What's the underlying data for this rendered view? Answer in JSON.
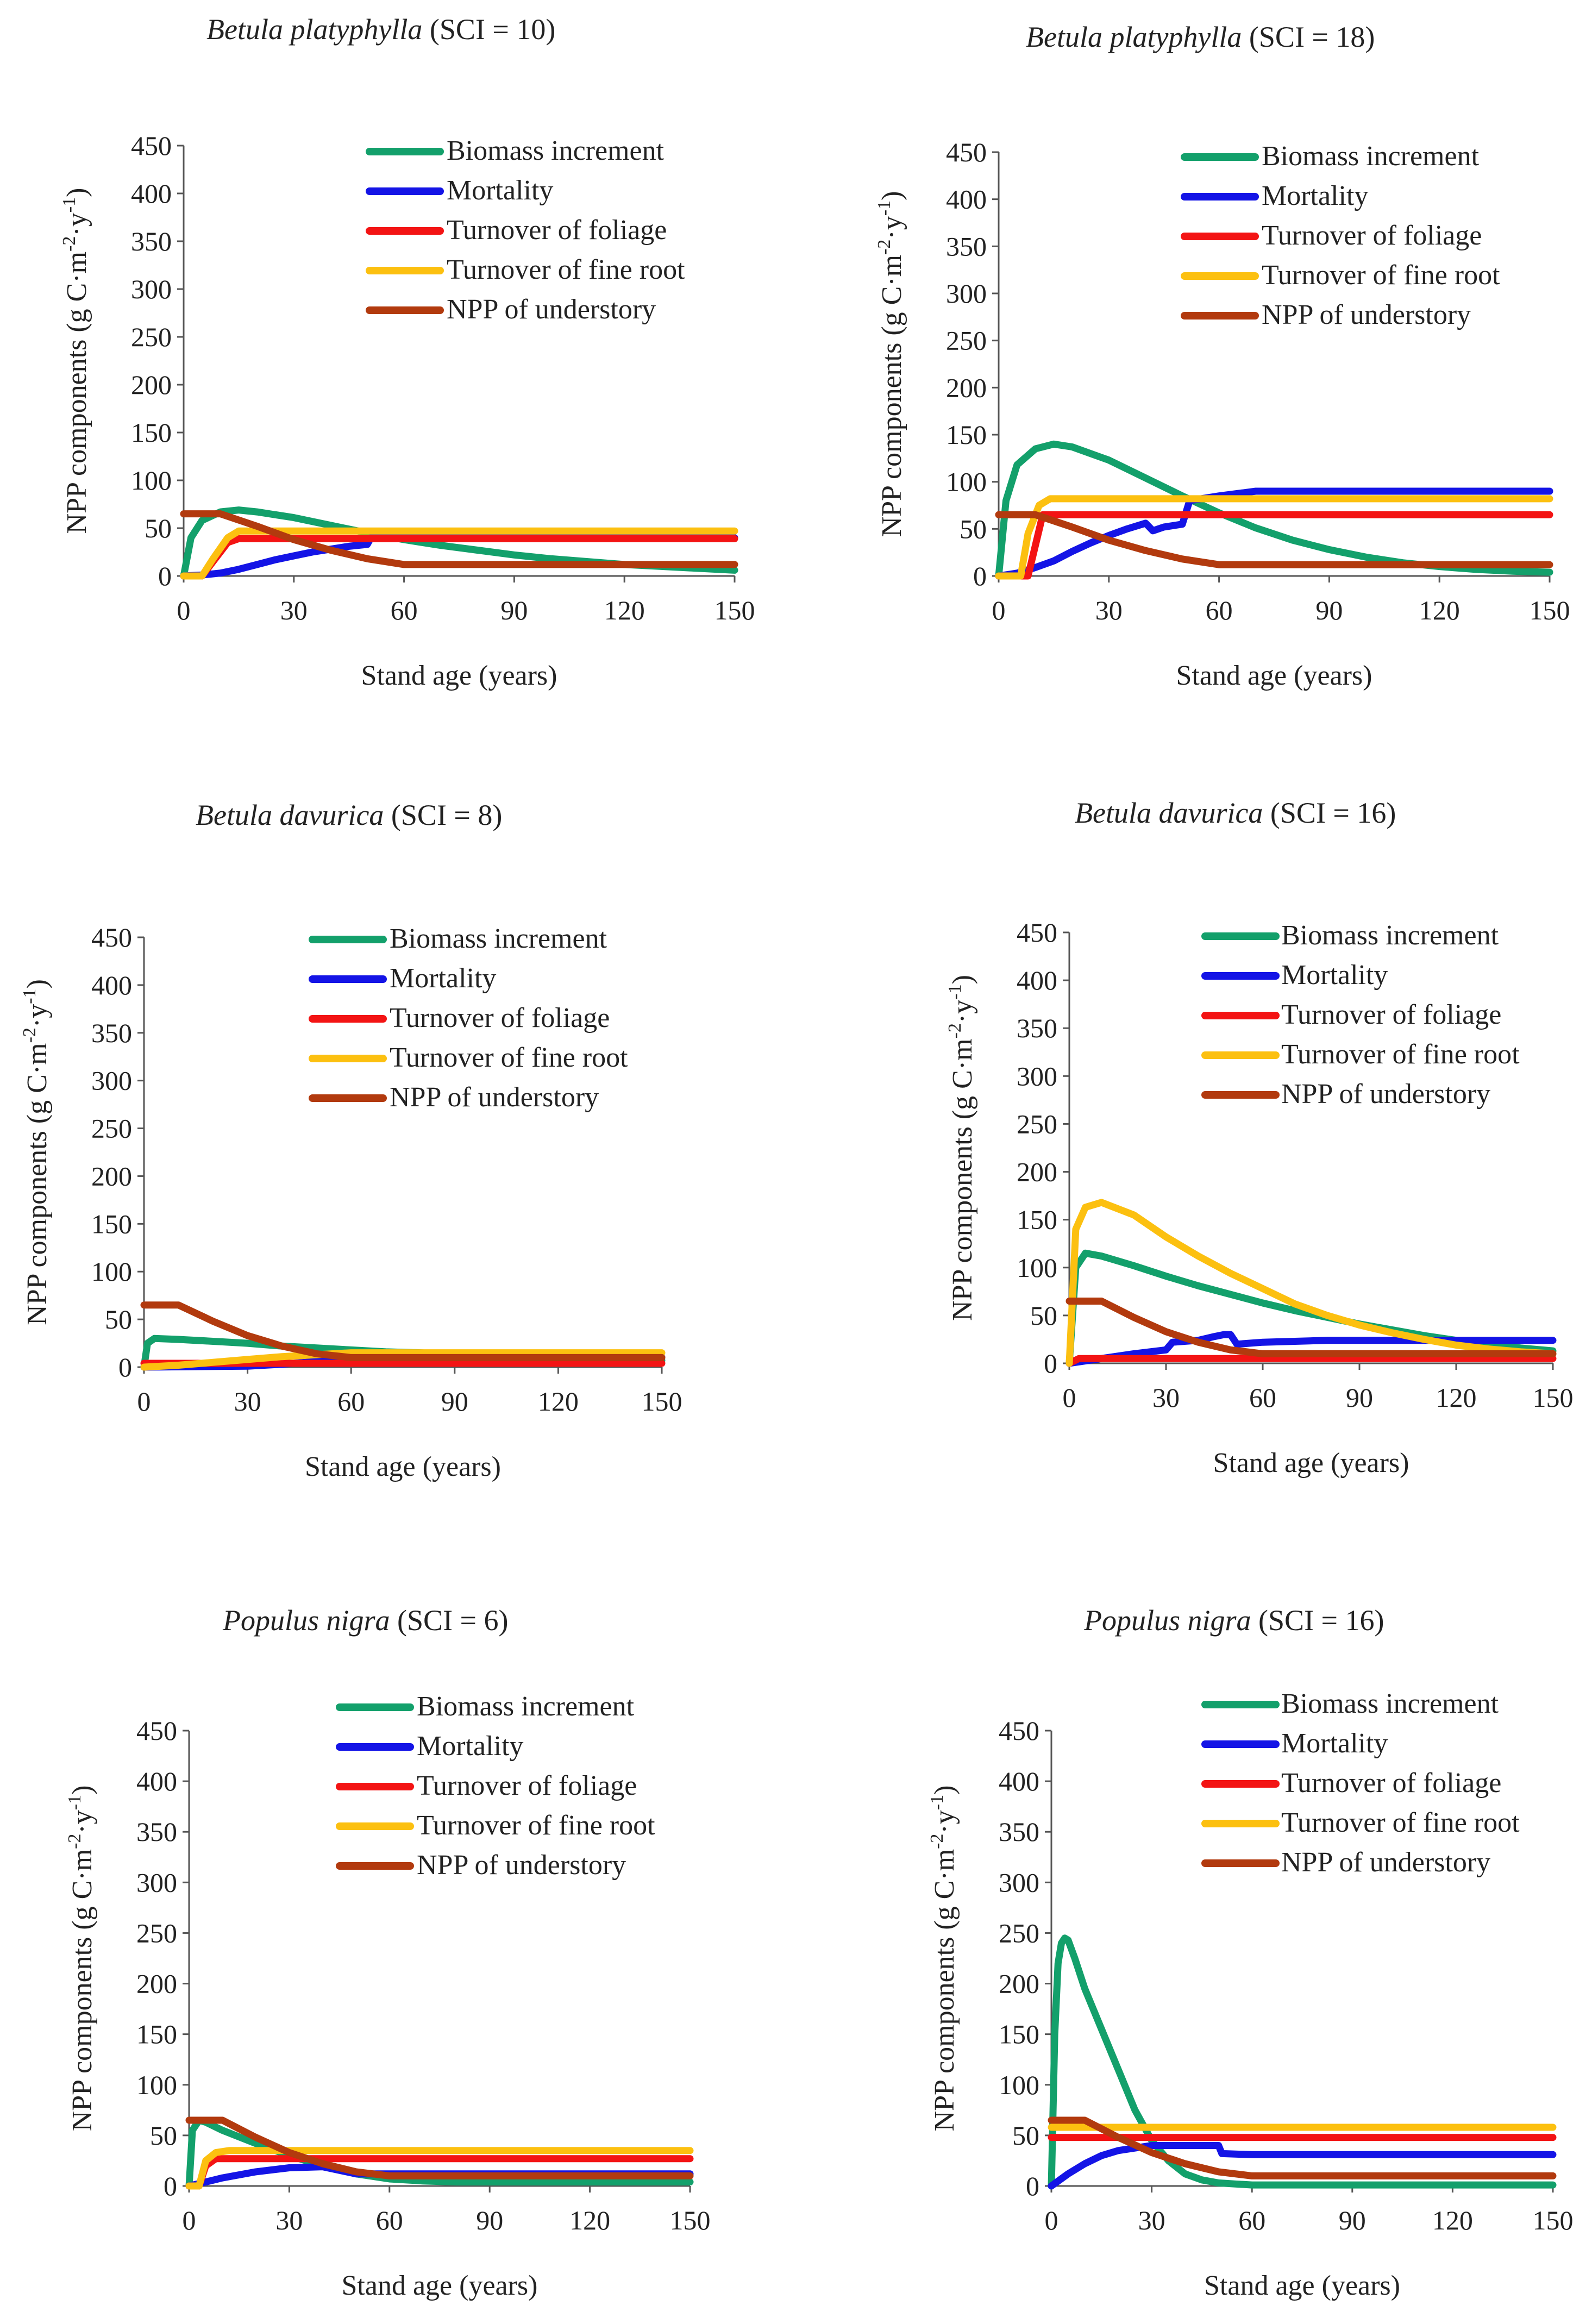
{
  "colors": {
    "Biomass increment": "#13A06B",
    "Mortality": "#1414E6",
    "Turnover of foliage": "#F31414",
    "Turnover of fine root": "#FCC010",
    "NPP of understory": "#B23A0E"
  },
  "legend_labels": [
    "Biomass increment",
    "Mortality",
    "Turnover of foliage",
    "Turnover of fine root",
    "NPP of understory"
  ],
  "chart_data": [
    {
      "type": "line",
      "species": "Betula platyphylla",
      "sci_label": " (SCI = 10)",
      "xlabel": "Stand age  (years)",
      "ylabel": "NPP components  (g C·m-2·y-1)",
      "ylabel_parts": {
        "pre": "NPP components  (g C·m",
        "sup1": "-2",
        "mid": "·y",
        "sup2": "-1",
        "post": ")"
      },
      "xlim": [
        0,
        150
      ],
      "ylim": [
        0,
        450
      ],
      "xticks": [
        0,
        30,
        60,
        90,
        120,
        150
      ],
      "yticks": [
        0,
        50,
        100,
        150,
        200,
        250,
        300,
        350,
        400,
        450
      ],
      "legend_position": "top-right",
      "series": [
        {
          "name": "Biomass increment",
          "x": [
            0,
            2,
            5,
            10,
            15,
            20,
            30,
            40,
            50,
            60,
            70,
            80,
            90,
            100,
            110,
            120,
            130,
            140,
            150
          ],
          "y": [
            0,
            40,
            58,
            67,
            69,
            67,
            61,
            53,
            45,
            38,
            32,
            27,
            22,
            18,
            15,
            12,
            10,
            8,
            6
          ]
        },
        {
          "name": "Mortality",
          "x": [
            0,
            5,
            10,
            15,
            20,
            25,
            30,
            35,
            40,
            45,
            50,
            51,
            150
          ],
          "y": [
            0,
            1,
            3,
            7,
            12,
            17,
            21,
            25,
            28,
            31,
            33,
            40,
            40
          ]
        },
        {
          "name": "Turnover of foliage",
          "x": [
            0,
            5,
            8,
            12,
            15,
            150
          ],
          "y": [
            0,
            0,
            15,
            35,
            39,
            39
          ]
        },
        {
          "name": "Turnover of fine root",
          "x": [
            0,
            5,
            8,
            12,
            15,
            150
          ],
          "y": [
            0,
            0,
            18,
            40,
            47,
            47
          ]
        },
        {
          "name": "NPP of understory",
          "x": [
            0,
            10,
            20,
            30,
            40,
            50,
            60,
            150
          ],
          "y": [
            65,
            65,
            52,
            38,
            27,
            18,
            12,
            12
          ]
        }
      ]
    },
    {
      "type": "line",
      "species": "Betula platyphylla",
      "sci_label": " (SCI = 18)",
      "xlabel": "Stand age  (years)",
      "ylabel": "NPP components  (g C·m-2·y-1)",
      "ylabel_parts": {
        "pre": "NPP components  (g C·m",
        "sup1": "-2",
        "mid": "·y",
        "sup2": "-1",
        "post": ")"
      },
      "xlim": [
        0,
        150
      ],
      "ylim": [
        0,
        450
      ],
      "xticks": [
        0,
        30,
        60,
        90,
        120,
        150
      ],
      "yticks": [
        0,
        50,
        100,
        150,
        200,
        250,
        300,
        350,
        400,
        450
      ],
      "legend_position": "top-right",
      "series": [
        {
          "name": "Biomass increment",
          "x": [
            0,
            2,
            5,
            10,
            15,
            20,
            30,
            40,
            50,
            60,
            70,
            80,
            90,
            100,
            110,
            120,
            130,
            140,
            150
          ],
          "y": [
            0,
            80,
            118,
            135,
            140,
            137,
            123,
            104,
            85,
            67,
            51,
            38,
            28,
            20,
            14,
            10,
            7,
            5,
            4
          ]
        },
        {
          "name": "Mortality",
          "x": [
            0,
            5,
            10,
            15,
            20,
            25,
            30,
            35,
            40,
            42,
            45,
            50,
            52,
            60,
            70,
            150
          ],
          "y": [
            0,
            3,
            9,
            16,
            26,
            35,
            43,
            50,
            56,
            48,
            52,
            55,
            80,
            85,
            90,
            90
          ]
        },
        {
          "name": "Turnover of foliage",
          "x": [
            0,
            8,
            12,
            150
          ],
          "y": [
            0,
            0,
            65,
            65
          ]
        },
        {
          "name": "Turnover of fine root",
          "x": [
            0,
            6,
            8,
            11,
            14,
            150
          ],
          "y": [
            0,
            0,
            45,
            75,
            82,
            82
          ]
        },
        {
          "name": "NPP of understory",
          "x": [
            0,
            10,
            20,
            30,
            40,
            50,
            60,
            150
          ],
          "y": [
            65,
            65,
            52,
            38,
            27,
            18,
            12,
            12
          ]
        }
      ]
    },
    {
      "type": "line",
      "species": "Betula davurica",
      "sci_label": " (SCI = 8)",
      "xlabel": "Stand age  (years)",
      "ylabel": "NPP components  (g C·m-2·y-1)",
      "ylabel_parts": {
        "pre": "NPP components  (g C·m",
        "sup1": "-2",
        "mid": "·y",
        "sup2": "-1",
        "post": ")"
      },
      "xlim": [
        0,
        150
      ],
      "ylim": [
        0,
        450
      ],
      "xticks": [
        0,
        30,
        60,
        90,
        120,
        150
      ],
      "yticks": [
        0,
        50,
        100,
        150,
        200,
        250,
        300,
        350,
        400,
        450
      ],
      "legend_position": "top-right",
      "series": [
        {
          "name": "Biomass increment",
          "x": [
            0,
            1,
            3,
            10,
            20,
            30,
            40,
            50,
            60,
            70,
            80,
            90,
            100,
            110,
            120,
            130,
            140,
            150
          ],
          "y": [
            0,
            25,
            30,
            29,
            27,
            25,
            22,
            20,
            18,
            16,
            15,
            13,
            12,
            11,
            10,
            9,
            8,
            7
          ]
        },
        {
          "name": "Mortality",
          "x": [
            0,
            30,
            40,
            50,
            55,
            60,
            150
          ],
          "y": [
            0,
            1,
            3,
            6,
            8,
            10,
            10
          ]
        },
        {
          "name": "Turnover of foliage",
          "x": [
            0,
            150
          ],
          "y": [
            4,
            4
          ]
        },
        {
          "name": "Turnover of fine root",
          "x": [
            0,
            10,
            20,
            30,
            40,
            50,
            60,
            150
          ],
          "y": [
            0,
            2,
            5,
            8,
            11,
            13,
            15,
            15
          ]
        },
        {
          "name": "NPP of understory",
          "x": [
            0,
            10,
            20,
            30,
            40,
            50,
            60,
            150
          ],
          "y": [
            65,
            65,
            48,
            33,
            22,
            14,
            10,
            10
          ]
        }
      ]
    },
    {
      "type": "line",
      "species": "Betula davurica",
      "sci_label": " (SCI = 16)",
      "xlabel": "Stand age  (years)",
      "ylabel": "NPP components  (g C·m-2·y-1)",
      "ylabel_parts": {
        "pre": "NPP components  (g C·m",
        "sup1": "-2",
        "mid": "·y",
        "sup2": "-1",
        "post": ")"
      },
      "xlim": [
        0,
        150
      ],
      "ylim": [
        0,
        450
      ],
      "xticks": [
        0,
        30,
        60,
        90,
        120,
        150
      ],
      "yticks": [
        0,
        50,
        100,
        150,
        200,
        250,
        300,
        350,
        400,
        450
      ],
      "legend_position": "top-right",
      "series": [
        {
          "name": "Biomass increment",
          "x": [
            0,
            2,
            5,
            10,
            20,
            30,
            40,
            50,
            60,
            70,
            80,
            90,
            100,
            110,
            120,
            130,
            140,
            150
          ],
          "y": [
            0,
            100,
            115,
            112,
            102,
            91,
            81,
            72,
            63,
            55,
            48,
            41,
            35,
            29,
            24,
            20,
            16,
            13
          ]
        },
        {
          "name": "Mortality",
          "x": [
            0,
            10,
            20,
            30,
            32,
            40,
            45,
            48,
            50,
            52,
            60,
            70,
            80,
            150
          ],
          "y": [
            0,
            5,
            10,
            14,
            22,
            24,
            28,
            30,
            30,
            20,
            22,
            23,
            24,
            24
          ]
        },
        {
          "name": "Turnover of foliage",
          "x": [
            0,
            3,
            150
          ],
          "y": [
            0,
            5,
            5
          ]
        },
        {
          "name": "Turnover of fine root",
          "x": [
            0,
            2,
            5,
            10,
            20,
            30,
            40,
            50,
            60,
            70,
            80,
            90,
            100,
            110,
            120,
            130,
            140,
            150
          ],
          "y": [
            0,
            140,
            163,
            168,
            155,
            132,
            112,
            94,
            78,
            62,
            50,
            40,
            32,
            25,
            19,
            15,
            12,
            10
          ]
        },
        {
          "name": "NPP of understory",
          "x": [
            0,
            10,
            20,
            30,
            40,
            50,
            60,
            150
          ],
          "y": [
            65,
            65,
            48,
            33,
            22,
            14,
            10,
            10
          ]
        }
      ]
    },
    {
      "type": "line",
      "species": "Populus nigra",
      "sci_label": " (SCI = 6)",
      "xlabel": "Stand age  (years)",
      "ylabel": "NPP components  (g C·m-2·y-1)",
      "ylabel_parts": {
        "pre": "NPP components  (g C·m",
        "sup1": "-2",
        "mid": "·y",
        "sup2": "-1",
        "post": ")"
      },
      "xlim": [
        0,
        150
      ],
      "ylim": [
        0,
        450
      ],
      "xticks": [
        0,
        30,
        60,
        90,
        120,
        150
      ],
      "yticks": [
        0,
        50,
        100,
        150,
        200,
        250,
        300,
        350,
        400,
        450
      ],
      "legend_position": "top-right",
      "series": [
        {
          "name": "Biomass increment",
          "x": [
            0,
            1,
            3,
            5,
            10,
            20,
            30,
            40,
            50,
            60,
            70,
            80,
            150
          ],
          "y": [
            0,
            55,
            65,
            63,
            55,
            42,
            30,
            20,
            12,
            7,
            5,
            4,
            4
          ]
        },
        {
          "name": "Mortality",
          "x": [
            0,
            5,
            10,
            20,
            30,
            40,
            50,
            150
          ],
          "y": [
            0,
            4,
            8,
            14,
            18,
            19,
            12,
            12
          ]
        },
        {
          "name": "Turnover of foliage",
          "x": [
            0,
            3,
            5,
            8,
            150
          ],
          "y": [
            0,
            0,
            20,
            27,
            27
          ]
        },
        {
          "name": "Turnover of fine root",
          "x": [
            0,
            3,
            5,
            8,
            12,
            150
          ],
          "y": [
            0,
            0,
            25,
            33,
            35,
            35
          ]
        },
        {
          "name": "NPP of understory",
          "x": [
            0,
            10,
            20,
            30,
            40,
            50,
            60,
            150
          ],
          "y": [
            65,
            65,
            48,
            33,
            22,
            14,
            10,
            10
          ]
        }
      ]
    },
    {
      "type": "line",
      "species": "Populus nigra",
      "sci_label": " (SCI = 16)",
      "xlabel": "Stand age  (years)",
      "ylabel": "NPP components  (g C·m-2·y-1)",
      "ylabel_parts": {
        "pre": "NPP components  (g C·m",
        "sup1": "-2",
        "mid": "·y",
        "sup2": "-1",
        "post": ")"
      },
      "xlim": [
        0,
        150
      ],
      "ylim": [
        0,
        450
      ],
      "xticks": [
        0,
        30,
        60,
        90,
        120,
        150
      ],
      "yticks": [
        0,
        50,
        100,
        150,
        200,
        250,
        300,
        350,
        400,
        450
      ],
      "legend_position": "top-right",
      "series": [
        {
          "name": "Biomass increment",
          "x": [
            0,
            1,
            2,
            3,
            4,
            5,
            7,
            10,
            15,
            20,
            25,
            30,
            35,
            40,
            45,
            50,
            55,
            60,
            150
          ],
          "y": [
            0,
            150,
            220,
            240,
            245,
            243,
            225,
            195,
            155,
            115,
            75,
            45,
            25,
            12,
            6,
            3,
            2,
            1,
            1
          ]
        },
        {
          "name": "Mortality",
          "x": [
            0,
            5,
            10,
            15,
            20,
            30,
            40,
            50,
            51,
            60,
            150
          ],
          "y": [
            0,
            12,
            22,
            30,
            35,
            40,
            40,
            40,
            32,
            31,
            31
          ]
        },
        {
          "name": "Turnover of foliage",
          "x": [
            0,
            2,
            150
          ],
          "y": [
            48,
            48,
            48
          ]
        },
        {
          "name": "Turnover of fine root",
          "x": [
            0,
            2,
            150
          ],
          "y": [
            58,
            58,
            58
          ]
        },
        {
          "name": "NPP of understory",
          "x": [
            0,
            10,
            20,
            30,
            40,
            50,
            60,
            150
          ],
          "y": [
            65,
            65,
            48,
            33,
            22,
            14,
            10,
            10
          ]
        }
      ]
    }
  ]
}
